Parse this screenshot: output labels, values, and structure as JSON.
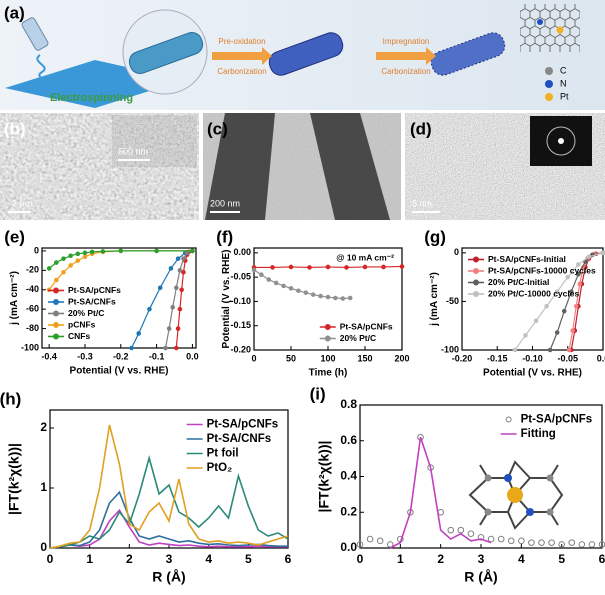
{
  "schematic": {
    "panel": "(a)",
    "step": "Electrospinning",
    "arrow1": [
      "Pre-oxidation",
      "Carbonization"
    ],
    "arrow2": [
      "Impregnation",
      "Carbonization"
    ],
    "legend": [
      "C",
      "N",
      "Pt"
    ]
  },
  "micrographs": [
    {
      "panel": "(b)",
      "scale_bar": "2 μm",
      "inset_scale_bar": "500 nm"
    },
    {
      "panel": "(c)",
      "scale_bar": "200 nm"
    },
    {
      "panel": "(d)",
      "scale_bar": "5 nm"
    }
  ],
  "chart_data": [
    {
      "type": "line",
      "panel": "(e)",
      "xlabel": "Potential (V vs. RHE)",
      "ylabel": "j (mA cm⁻²)",
      "xlim": [
        -0.42,
        0.01
      ],
      "xticks": [
        -0.4,
        -0.3,
        -0.2,
        -0.1,
        {
          "value": 0,
          "label": "0.0"
        }
      ],
      "ylim": [
        -100,
        3
      ],
      "yticks": [
        0,
        -20,
        -40,
        -60,
        -80,
        -100
      ],
      "legend": "lower left",
      "series": [
        {
          "name": "Pt-SA/pCNFs",
          "color": "#d62728",
          "mode": "line+markers",
          "x": [
            -0.045,
            -0.04,
            -0.035,
            -0.03,
            -0.025,
            -0.02,
            -0.015,
            -0.01,
            0
          ],
          "values": [
            -100,
            -80,
            -60,
            -40,
            -22,
            -10,
            -4,
            -1,
            0
          ]
        },
        {
          "name": "Pt-SA/CNFs",
          "color": "#1f77b4",
          "mode": "line+markers",
          "x": [
            -0.17,
            -0.15,
            -0.12,
            -0.09,
            -0.06,
            -0.04,
            -0.02,
            0
          ],
          "values": [
            -100,
            -85,
            -60,
            -38,
            -18,
            -8,
            -2,
            0
          ]
        },
        {
          "name": "20% Pt/C",
          "color": "#808080",
          "mode": "line+markers",
          "x": [
            -0.075,
            -0.065,
            -0.055,
            -0.045,
            -0.035,
            -0.025,
            -0.015,
            0
          ],
          "values": [
            -100,
            -80,
            -58,
            -38,
            -20,
            -8,
            -2,
            0
          ]
        },
        {
          "name": "pCNFs",
          "color": "#f0a020",
          "mode": "line+markers",
          "x": [
            -0.4,
            -0.38,
            -0.36,
            -0.34,
            -0.32,
            -0.3,
            -0.28,
            -0.25,
            -0.2,
            -0.1,
            0
          ],
          "values": [
            -40,
            -30,
            -22,
            -15,
            -10,
            -6,
            -3,
            -1,
            0,
            0,
            0
          ]
        },
        {
          "name": "CNFs",
          "color": "#2ca02c",
          "mode": "line+markers",
          "x": [
            -0.4,
            -0.38,
            -0.36,
            -0.34,
            -0.32,
            -0.3,
            -0.28,
            -0.25,
            -0.2,
            -0.1,
            0
          ],
          "values": [
            -18,
            -12,
            -8,
            -5,
            -3,
            -2,
            -1,
            -0.5,
            0,
            0,
            0
          ]
        }
      ]
    },
    {
      "type": "line",
      "panel": "(f)",
      "xlabel": "Time (h)",
      "ylabel": "Potential (V vs. RHE)",
      "annotation": "@ 10 mA cm⁻²",
      "xlim": [
        0,
        200
      ],
      "xticks": [
        0,
        50,
        100,
        150,
        200
      ],
      "ylim": [
        -0.2,
        0.01
      ],
      "yticks": [
        {
          "value": 0,
          "label": "0.00"
        },
        -0.05,
        {
          "value": -0.1,
          "label": "-0.10"
        },
        -0.15,
        {
          "value": -0.2,
          "label": "-0.20"
        }
      ],
      "legend": "lower right",
      "series": [
        {
          "name": "Pt-SA/pCNFs",
          "color": "#d62728",
          "mode": "line+markers",
          "x": [
            0,
            25,
            50,
            75,
            100,
            125,
            150,
            175,
            200
          ],
          "values": [
            -0.03,
            -0.03,
            -0.029,
            -0.03,
            -0.029,
            -0.03,
            -0.029,
            -0.029,
            -0.028
          ]
        },
        {
          "name": "20% Pt/C",
          "color": "#909090",
          "mode": "line+markers",
          "x": [
            0,
            10,
            20,
            30,
            40,
            50,
            60,
            70,
            80,
            90,
            100,
            110,
            120,
            130
          ],
          "values": [
            -0.035,
            -0.045,
            -0.055,
            -0.062,
            -0.068,
            -0.073,
            -0.078,
            -0.082,
            -0.086,
            -0.089,
            -0.091,
            -0.093,
            -0.094,
            -0.093
          ]
        }
      ]
    },
    {
      "type": "line",
      "panel": "(g)",
      "xlabel": "Potential (V vs. RHE)",
      "ylabel": "j (mA cm⁻²)",
      "xlim": [
        -0.2,
        0
      ],
      "xticks": [
        {
          "value": -0.2,
          "label": "-0.20"
        },
        -0.15,
        {
          "value": -0.1,
          "label": "-0.10"
        },
        -0.05,
        {
          "value": 0,
          "label": "0.0"
        }
      ],
      "ylim": [
        -100,
        5
      ],
      "yticks": [
        0,
        -50,
        -100
      ],
      "legend": "upper left",
      "series": [
        {
          "name": "Pt-SA/pCNFs-Initial",
          "color": "#c0202a",
          "mode": "line+markers",
          "x": [
            -0.045,
            -0.04,
            -0.035,
            -0.03,
            -0.025,
            -0.02,
            -0.01,
            0
          ],
          "values": [
            -100,
            -80,
            -55,
            -32,
            -15,
            -6,
            -1,
            0
          ]
        },
        {
          "name": "Pt-SA/pCNFs-10000 cycles",
          "color": "#f08080",
          "mode": "line+markers",
          "x": [
            -0.048,
            -0.043,
            -0.038,
            -0.033,
            -0.028,
            -0.022,
            -0.012,
            0
          ],
          "values": [
            -100,
            -80,
            -55,
            -32,
            -15,
            -6,
            -1,
            0
          ]
        },
        {
          "name": "20% Pt/C-Initial",
          "color": "#606060",
          "mode": "line+markers",
          "x": [
            -0.075,
            -0.065,
            -0.055,
            -0.045,
            -0.035,
            -0.025,
            -0.015,
            0
          ],
          "values": [
            -100,
            -82,
            -60,
            -40,
            -22,
            -9,
            -2,
            0
          ]
        },
        {
          "name": "20% Pt/C-10000 cycles",
          "color": "#c0c0c0",
          "mode": "line+markers",
          "x": [
            -0.125,
            -0.11,
            -0.095,
            -0.08,
            -0.065,
            -0.05,
            -0.035,
            -0.02,
            0
          ],
          "values": [
            -100,
            -85,
            -70,
            -55,
            -40,
            -25,
            -12,
            -4,
            0
          ]
        }
      ]
    },
    {
      "type": "line",
      "panel": "(h)",
      "xlabel": "R (Å)",
      "ylabel": "|FT(k²χ(k))|",
      "xlim": [
        0,
        6
      ],
      "xticks": [
        0,
        1,
        2,
        3,
        4,
        5,
        6
      ],
      "ylim": [
        0,
        2.3
      ],
      "yticks": [
        0,
        1,
        2
      ],
      "legend": "upper right",
      "x": [
        0,
        0.25,
        0.5,
        0.75,
        1,
        1.25,
        1.5,
        1.75,
        2,
        2.25,
        2.5,
        2.75,
        3,
        3.25,
        3.5,
        3.75,
        4,
        4.25,
        4.5,
        4.75,
        5,
        5.25,
        5.5,
        5.75,
        6
      ],
      "series": [
        {
          "name": "Pt-SA/pCNFs",
          "color": "#c040c0",
          "mode": "line",
          "values": [
            0,
            0.02,
            0.05,
            0.03,
            0.05,
            0.15,
            0.45,
            0.63,
            0.35,
            0.1,
            0.05,
            0.08,
            0.06,
            0.04,
            0.05,
            0.03,
            0.02,
            0.03,
            0.02,
            0.02,
            0.02,
            0.03,
            0.02,
            0.02,
            0.02
          ]
        },
        {
          "name": "Pt-SA/CNFs",
          "color": "#2e6e9e",
          "mode": "line",
          "values": [
            0,
            0.02,
            0.05,
            0.04,
            0.1,
            0.3,
            0.75,
            0.93,
            0.5,
            0.2,
            0.15,
            0.2,
            0.15,
            0.1,
            0.12,
            0.08,
            0.06,
            0.07,
            0.05,
            0.04,
            0.05,
            0.06,
            0.04,
            0.03,
            0.03
          ]
        },
        {
          "name": "Pt foil",
          "color": "#2a8a78",
          "mode": "line",
          "values": [
            0,
            0.02,
            0.05,
            0.1,
            0.2,
            0.15,
            0.3,
            0.6,
            0.4,
            0.9,
            1.5,
            0.9,
            1.05,
            0.6,
            0.5,
            0.35,
            0.5,
            0.7,
            0.5,
            1.2,
            0.7,
            0.3,
            0.2,
            0.25,
            0.15
          ]
        },
        {
          "name": "PtO₂",
          "color": "#e0a020",
          "mode": "line",
          "values": [
            0,
            0.03,
            0.08,
            0.1,
            0.3,
            1.0,
            2.05,
            1.4,
            0.4,
            0.3,
            0.6,
            0.75,
            0.45,
            1.15,
            0.4,
            0.15,
            0.1,
            0.12,
            0.08,
            0.1,
            0.08,
            0.05,
            0.1,
            0.15,
            0.2
          ]
        }
      ]
    },
    {
      "type": "line",
      "panel": "(i)",
      "xlabel": "R (Å)",
      "ylabel": "|FT(k²χ(k))|",
      "xlim": [
        0,
        6
      ],
      "xticks": [
        0,
        1,
        2,
        3,
        4,
        5,
        6
      ],
      "ylim": [
        0,
        0.8
      ],
      "yticks": [
        {
          "value": 0,
          "label": "0.0"
        },
        0.2,
        0.4,
        0.6,
        0.8
      ],
      "legend": "upper right",
      "x": [
        0,
        0.25,
        0.5,
        0.75,
        1,
        1.25,
        1.5,
        1.75,
        2,
        2.25,
        2.5,
        2.75,
        3,
        3.25,
        3.5,
        3.75,
        4,
        4.25,
        4.5,
        4.75,
        5,
        5.25,
        5.5,
        5.75,
        6
      ],
      "series": [
        {
          "name": "Pt-SA/pCNFs",
          "color": "#808080",
          "mode": "markers",
          "values": [
            0.02,
            0.05,
            0.04,
            0.02,
            0.05,
            0.2,
            0.62,
            0.45,
            0.2,
            0.1,
            0.1,
            0.08,
            0.06,
            0.05,
            0.05,
            0.04,
            0.04,
            0.03,
            0.03,
            0.03,
            0.02,
            0.03,
            0.02,
            0.02,
            0.02
          ]
        },
        {
          "name": "Fitting",
          "color": "#c040c0",
          "mode": "line",
          "values": [
            null,
            null,
            null,
            0,
            0.03,
            0.2,
            0.62,
            0.45,
            0.1,
            0.05,
            0.08,
            0.04,
            0.05,
            0.03,
            null,
            null,
            null,
            null,
            null,
            null,
            null,
            null,
            null,
            null,
            null
          ]
        }
      ]
    }
  ]
}
